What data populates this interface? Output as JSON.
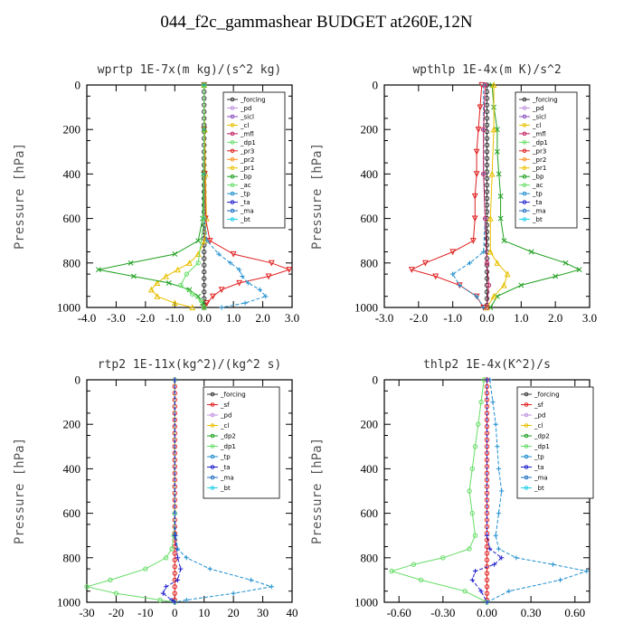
{
  "title": "044_f2c_gammashear  BUDGET at260E,12N",
  "chart_data": [
    {
      "type": "line",
      "title": "wprtp  1E-7x(m kg)/(s^2 kg)",
      "ylabel": "Pressure [hPa]",
      "xlim": [
        -4.0,
        3.0
      ],
      "ylim": [
        1000,
        0
      ],
      "xticks": [
        "-4.0",
        "-3.0",
        "-2.0",
        "-1.0",
        "0.0",
        "1.0",
        "2.0",
        "3.0"
      ],
      "yticks": [
        "0",
        "200",
        "400",
        "600",
        "800",
        "1000"
      ],
      "legend": [
        "_forcing",
        "_pd",
        "_sicl",
        "_cl",
        "_mfl",
        "_dp1",
        "_pr3",
        "_pr2",
        "_pr1",
        "_bp",
        "_ac",
        "_tp",
        "_ta",
        "_ma",
        "_bt"
      ],
      "series": [
        {
          "name": "_forcing",
          "color": "#333333",
          "marker": "o",
          "y": [
            0,
            30,
            60,
            90,
            120,
            150,
            180,
            210,
            240,
            270,
            300,
            330,
            360,
            390,
            420,
            450,
            480,
            510,
            540,
            570,
            600,
            630,
            660,
            690,
            720,
            750,
            780,
            810,
            840,
            870,
            900,
            930,
            960,
            990
          ],
          "x": [
            0,
            0,
            0,
            0,
            0,
            0,
            0,
            0,
            0,
            0,
            0,
            0,
            0,
            0,
            0,
            0,
            0,
            0,
            0,
            0,
            0,
            0,
            0,
            0,
            0,
            0,
            0,
            0,
            0,
            0,
            0,
            0,
            0,
            0
          ]
        },
        {
          "name": "_pr1",
          "color": "#e8c000",
          "marker": "^",
          "y": [
            0,
            200,
            400,
            600,
            700,
            760,
            800,
            830,
            860,
            890,
            920,
            950,
            980,
            1000
          ],
          "x": [
            0,
            0.02,
            0.05,
            0.08,
            0.02,
            -0.2,
            -0.5,
            -0.9,
            -1.3,
            -1.6,
            -1.8,
            -1.6,
            -1.0,
            -0.4
          ]
        },
        {
          "name": "_pr3",
          "color": "#e02020",
          "marker": "v",
          "y": [
            0,
            200,
            400,
            600,
            700,
            760,
            800,
            830,
            860,
            890,
            920,
            950,
            980,
            1000
          ],
          "x": [
            0,
            0,
            0.02,
            0.05,
            0.2,
            1.0,
            2.3,
            2.9,
            2.2,
            1.2,
            0.6,
            0.3,
            0.1,
            0.0
          ]
        },
        {
          "name": "_bp",
          "color": "#1fa01f",
          "marker": "x",
          "y": [
            0,
            200,
            400,
            600,
            700,
            760,
            800,
            830,
            860,
            890,
            920,
            950,
            980,
            1000
          ],
          "x": [
            0,
            0,
            -0.02,
            -0.05,
            -0.2,
            -1.0,
            -2.5,
            -3.6,
            -2.4,
            -1.2,
            -0.5,
            -0.2,
            -0.05,
            0.0
          ]
        },
        {
          "name": "_tp",
          "color": "#1f8fcf",
          "marker": "+",
          "y": [
            0,
            200,
            400,
            600,
            700,
            760,
            800,
            830,
            860,
            890,
            920,
            950,
            980,
            1000
          ],
          "x": [
            0,
            0,
            0,
            0,
            0.1,
            0.5,
            0.9,
            1.2,
            1.3,
            1.5,
            1.9,
            2.1,
            1.4,
            0.6
          ]
        },
        {
          "name": "_ac",
          "color": "#66dd66",
          "marker": "o",
          "y": [
            0,
            600,
            800,
            850,
            900,
            940,
            970,
            1000
          ],
          "x": [
            0,
            0,
            -0.2,
            -0.6,
            -0.8,
            -0.4,
            -0.1,
            0.0
          ]
        }
      ]
    },
    {
      "type": "line",
      "title": "wpthlp  1E-4x(m K)/s^2",
      "ylabel": "Pressure [hPa]",
      "xlim": [
        -3.0,
        3.0
      ],
      "ylim": [
        1000,
        0
      ],
      "xticks": [
        "-3.0",
        "-2.0",
        "-1.0",
        "0.0",
        "1.0",
        "2.0",
        "3.0"
      ],
      "yticks": [
        "0",
        "200",
        "400",
        "600",
        "800",
        "1000"
      ],
      "legend": [
        "_forcing",
        "_pd",
        "_sicl",
        "_cl",
        "_mfl",
        "_dp1",
        "_pr3",
        "_pr2",
        "_pr1",
        "_bp",
        "_ac",
        "_tp",
        "_ta",
        "_ma",
        "_bt"
      ],
      "series": [
        {
          "name": "_forcing",
          "color": "#333333",
          "marker": "o",
          "y": [
            0,
            30,
            60,
            90,
            120,
            150,
            180,
            210,
            240,
            270,
            300,
            330,
            360,
            390,
            420,
            450,
            480,
            510,
            540,
            570,
            600,
            630,
            660,
            690,
            720,
            750,
            780,
            810,
            840,
            870,
            900,
            930,
            960,
            990
          ],
          "x": [
            0,
            0,
            0,
            0,
            0,
            0,
            0,
            0,
            0,
            0,
            0,
            0,
            0,
            0,
            0,
            0,
            0,
            0,
            0,
            0,
            0,
            0,
            0,
            0,
            0,
            0,
            0,
            0,
            0,
            0,
            0,
            0,
            0,
            0
          ]
        },
        {
          "name": "_bp",
          "color": "#1fa01f",
          "marker": "x",
          "y": [
            0,
            100,
            200,
            300,
            400,
            500,
            600,
            700,
            750,
            800,
            830,
            860,
            900,
            950,
            1000
          ],
          "x": [
            0.15,
            0.2,
            0.3,
            0.3,
            0.35,
            0.4,
            0.4,
            0.5,
            1.3,
            2.3,
            2.7,
            2.0,
            1.0,
            0.3,
            0.1
          ]
        },
        {
          "name": "_pr3",
          "color": "#e02020",
          "marker": "v",
          "y": [
            0,
            100,
            200,
            300,
            400,
            500,
            600,
            700,
            750,
            800,
            830,
            860,
            900,
            950,
            1000
          ],
          "x": [
            -0.15,
            -0.2,
            -0.25,
            -0.3,
            -0.3,
            -0.35,
            -0.35,
            -0.4,
            -1.0,
            -1.8,
            -2.2,
            -1.5,
            -0.8,
            -0.3,
            -0.1
          ]
        },
        {
          "name": "_pr1",
          "color": "#e8c000",
          "marker": "^",
          "y": [
            0,
            200,
            400,
            600,
            750,
            800,
            850,
            900,
            950,
            1000
          ],
          "x": [
            0.2,
            0.2,
            0.15,
            0.1,
            0.1,
            0.3,
            0.6,
            0.5,
            0.2,
            0.0
          ]
        },
        {
          "name": "_tp",
          "color": "#1f8fcf",
          "marker": "+",
          "y": [
            0,
            200,
            400,
            600,
            750,
            800,
            850,
            900,
            950,
            1000
          ],
          "x": [
            -0.1,
            -0.1,
            -0.1,
            -0.05,
            -0.1,
            -0.5,
            -1.0,
            -0.8,
            -0.3,
            -0.1
          ]
        },
        {
          "name": "_dp1",
          "color": "#c02060",
          "marker": "o",
          "y": [
            0,
            200,
            400,
            600,
            800,
            900,
            1000
          ],
          "x": [
            -0.05,
            -0.1,
            -0.1,
            -0.05,
            0.0,
            0.05,
            0.0
          ]
        }
      ]
    },
    {
      "type": "line",
      "title": "rtp2  1E-11x(kg^2)/(kg^2 s)",
      "ylabel": "Pressure [hPa]",
      "xlim": [
        -30,
        40
      ],
      "ylim": [
        1000,
        0
      ],
      "xticks": [
        "-30",
        "-20",
        "-10",
        "0",
        "10",
        "20",
        "30",
        "40"
      ],
      "yticks": [
        "0",
        "200",
        "400",
        "600",
        "800",
        "1000"
      ],
      "legend": [
        "_forcing",
        "_sf",
        "_pd",
        "_cl",
        "_dp2",
        "_dp1",
        "_tp",
        "_ta",
        "_ma",
        "_bt"
      ],
      "series": [
        {
          "name": "_forcing",
          "color": "#e02020",
          "marker": "o",
          "y": [
            0,
            30,
            60,
            90,
            120,
            150,
            180,
            210,
            240,
            270,
            300,
            330,
            360,
            390,
            420,
            450,
            480,
            510,
            540,
            570,
            600,
            630,
            660,
            690,
            720,
            750,
            780,
            810,
            840,
            870,
            900,
            930,
            960,
            990
          ],
          "x": [
            0,
            0,
            0,
            0,
            0,
            0,
            0,
            0,
            0,
            0,
            0,
            0,
            0,
            0,
            0,
            0,
            0,
            0,
            0,
            0,
            0,
            0,
            0,
            0,
            0,
            0,
            0,
            0,
            0,
            0,
            0,
            0,
            0,
            0
          ]
        },
        {
          "name": "_dp1",
          "color": "#66dd66",
          "marker": "o",
          "y": [
            0,
            600,
            700,
            760,
            800,
            850,
            900,
            930,
            960,
            990,
            1000
          ],
          "x": [
            0,
            0,
            -0.3,
            -1,
            -3,
            -10,
            -22,
            -30,
            -20,
            -5,
            0
          ]
        },
        {
          "name": "_tp",
          "color": "#1f8fcf",
          "marker": "+",
          "y": [
            0,
            600,
            700,
            760,
            800,
            850,
            900,
            930,
            960,
            990,
            1000
          ],
          "x": [
            0,
            0,
            0.3,
            1,
            4,
            12,
            26,
            33,
            20,
            4,
            0
          ]
        },
        {
          "name": "_ta",
          "color": "#2020cc",
          "marker": "+",
          "y": [
            0,
            700,
            800,
            850,
            900,
            930,
            960,
            990,
            1000
          ],
          "x": [
            0,
            0,
            1,
            2,
            1,
            -3,
            -4,
            -1,
            0
          ]
        }
      ]
    },
    {
      "type": "line",
      "title": "thlp2  1E-4x(K^2)/s",
      "ylabel": "Pressure [hPa]",
      "xlim": [
        -0.7,
        0.7
      ],
      "ylim": [
        1000,
        0
      ],
      "xticks": [
        "-0.60",
        "-0.30",
        "0.00",
        "0.30",
        "0.60"
      ],
      "yticks": [
        "0",
        "200",
        "400",
        "600",
        "800",
        "1000"
      ],
      "legend": [
        "_forcing",
        "_sf",
        "_pd",
        "_cl",
        "_dp2",
        "_dp1",
        "_tp",
        "_ta",
        "_ma",
        "_bt"
      ],
      "series": [
        {
          "name": "_forcing",
          "color": "#e02020",
          "marker": "o",
          "y": [
            0,
            30,
            60,
            90,
            120,
            150,
            180,
            210,
            240,
            270,
            300,
            330,
            360,
            390,
            420,
            450,
            480,
            510,
            540,
            570,
            600,
            630,
            660,
            690,
            720,
            750,
            780,
            810,
            840,
            870,
            900,
            930,
            960,
            990
          ],
          "x": [
            0,
            0,
            0,
            0,
            0,
            0,
            0,
            0,
            0,
            0,
            0,
            0,
            0,
            0,
            0,
            0,
            0,
            0,
            0,
            0,
            0,
            0,
            0,
            0,
            0,
            0,
            0,
            0,
            0,
            0,
            0,
            0,
            0,
            0
          ]
        },
        {
          "name": "_dp1",
          "color": "#66dd66",
          "marker": "o",
          "y": [
            0,
            100,
            200,
            300,
            400,
            500,
            600,
            700,
            760,
            800,
            830,
            860,
            900,
            950,
            1000
          ],
          "x": [
            -0.02,
            -0.04,
            -0.06,
            -0.08,
            -0.1,
            -0.12,
            -0.1,
            -0.08,
            -0.12,
            -0.3,
            -0.5,
            -0.65,
            -0.45,
            -0.15,
            0.0
          ]
        },
        {
          "name": "_tp",
          "color": "#1f8fcf",
          "marker": "+",
          "y": [
            0,
            100,
            200,
            300,
            400,
            500,
            600,
            700,
            760,
            800,
            830,
            860,
            900,
            950,
            1000
          ],
          "x": [
            0.02,
            0.04,
            0.06,
            0.07,
            0.08,
            0.1,
            0.08,
            0.06,
            0.08,
            0.2,
            0.45,
            0.68,
            0.5,
            0.15,
            0.0
          ]
        },
        {
          "name": "_ta",
          "color": "#2020cc",
          "marker": "+",
          "y": [
            0,
            700,
            760,
            800,
            830,
            860,
            900,
            950,
            1000
          ],
          "x": [
            0,
            0,
            0.02,
            0.1,
            0.05,
            -0.08,
            -0.1,
            -0.04,
            0
          ]
        }
      ]
    }
  ]
}
